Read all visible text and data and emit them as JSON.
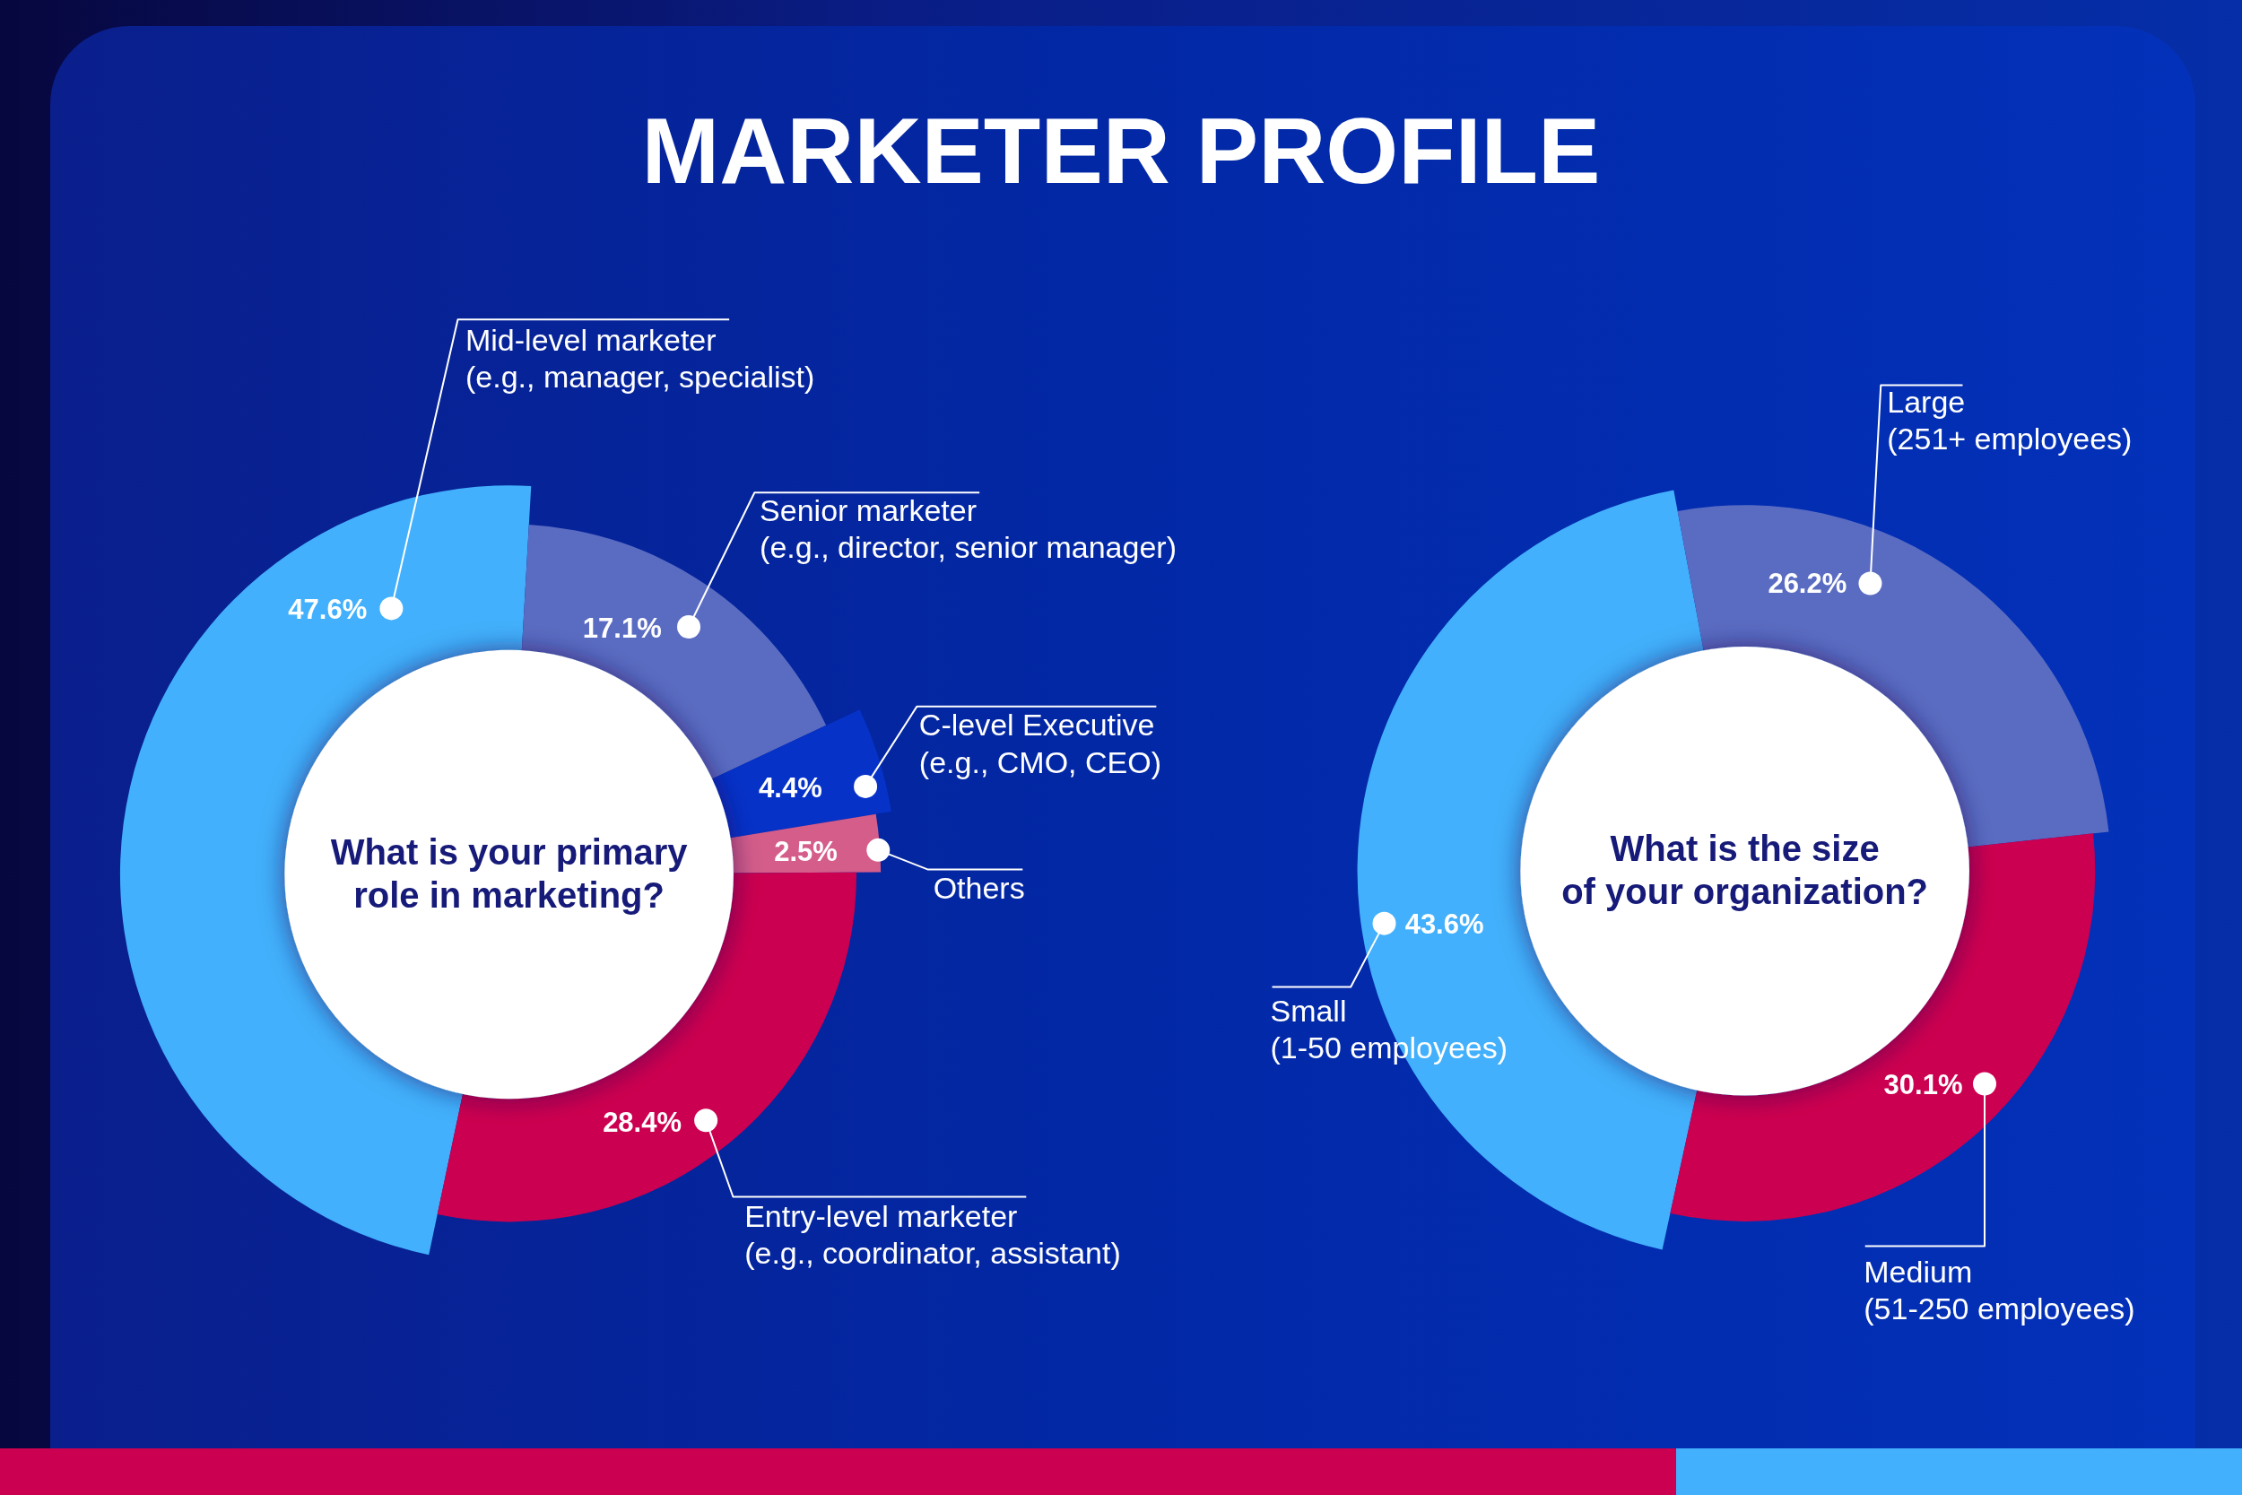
{
  "chart_data": [
    {
      "type": "other",
      "title": "MARKETER PROFILE"
    },
    {
      "type": "donut",
      "title": "What is your primary\nrole in marketing?",
      "categories": [
        "Mid-level marketer\n(e.g., manager, specialist)",
        "Senior marketer\n(e.g., director, senior manager)",
        "C-level Executive\n(e.g., CMO, CEO)",
        "Others",
        "Entry-level marketer\n(e.g., coordinator, assistant)"
      ],
      "values": [
        47.6,
        17.1,
        4.4,
        2.5,
        28.4
      ],
      "value_labels": [
        "47.6%",
        "17.1%",
        "4.4%",
        "2.5%",
        "28.4%"
      ],
      "colors": [
        "#42b0fc",
        "#5a6cc2",
        "#0632c8",
        "#d45d8a",
        "#cc0050"
      ]
    },
    {
      "type": "donut",
      "title": "What is the size\nof your organization?",
      "categories": [
        "Small\n(1-50 employees)",
        "Large\n(251+ employees)",
        "Medium\n(51-250 employees)"
      ],
      "values": [
        43.6,
        26.2,
        30.1
      ],
      "value_labels": [
        "43.6%",
        "26.2%",
        "30.1%"
      ],
      "colors": [
        "#42b0fc",
        "#5a6cc2",
        "#cc0050"
      ]
    }
  ]
}
